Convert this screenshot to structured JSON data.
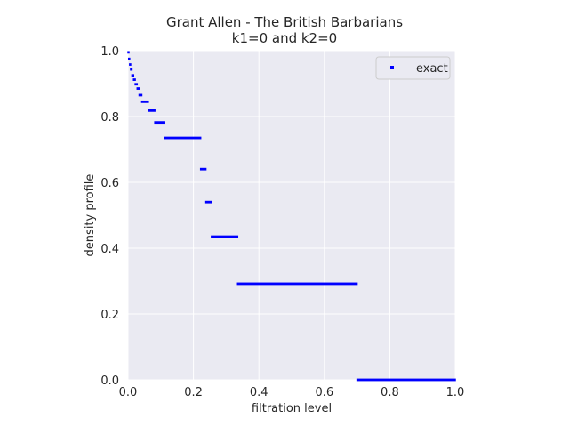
{
  "chart_data": {
    "type": "scatter",
    "title": "Grant Allen - The British Barbarians",
    "subtitle": "k1=0 and k2=0",
    "xlabel": "filtration level",
    "ylabel": "density profile",
    "xlim": [
      0.0,
      1.0
    ],
    "ylim": [
      0.0,
      1.0
    ],
    "xticks": [
      "0.0",
      "0.2",
      "0.4",
      "0.6",
      "0.8",
      "1.0"
    ],
    "yticks": [
      "0.0",
      "0.2",
      "0.4",
      "0.6",
      "0.8",
      "1.0"
    ],
    "grid": true,
    "legend": {
      "position": "top-right",
      "entries": [
        "exact"
      ]
    },
    "series": [
      {
        "name": "exact",
        "color": "#0000ff",
        "marker": "square",
        "steps": [
          {
            "x_start": 0.0,
            "x_end": 0.002,
            "y": 0.995
          },
          {
            "x_start": 0.002,
            "x_end": 0.005,
            "y": 0.975
          },
          {
            "x_start": 0.005,
            "x_end": 0.008,
            "y": 0.958
          },
          {
            "x_start": 0.008,
            "x_end": 0.012,
            "y": 0.943
          },
          {
            "x_start": 0.012,
            "x_end": 0.017,
            "y": 0.925
          },
          {
            "x_start": 0.017,
            "x_end": 0.022,
            "y": 0.912
          },
          {
            "x_start": 0.022,
            "x_end": 0.028,
            "y": 0.898
          },
          {
            "x_start": 0.028,
            "x_end": 0.034,
            "y": 0.885
          },
          {
            "x_start": 0.034,
            "x_end": 0.042,
            "y": 0.865
          },
          {
            "x_start": 0.042,
            "x_end": 0.062,
            "y": 0.845
          },
          {
            "x_start": 0.062,
            "x_end": 0.082,
            "y": 0.818
          },
          {
            "x_start": 0.082,
            "x_end": 0.112,
            "y": 0.782
          },
          {
            "x_start": 0.112,
            "x_end": 0.222,
            "y": 0.735
          },
          {
            "x_start": 0.222,
            "x_end": 0.238,
            "y": 0.64
          },
          {
            "x_start": 0.238,
            "x_end": 0.255,
            "y": 0.54
          },
          {
            "x_start": 0.255,
            "x_end": 0.335,
            "y": 0.435
          },
          {
            "x_start": 0.335,
            "x_end": 0.7,
            "y": 0.292
          },
          {
            "x_start": 0.7,
            "x_end": 1.0,
            "y": 0.0
          }
        ]
      }
    ]
  }
}
